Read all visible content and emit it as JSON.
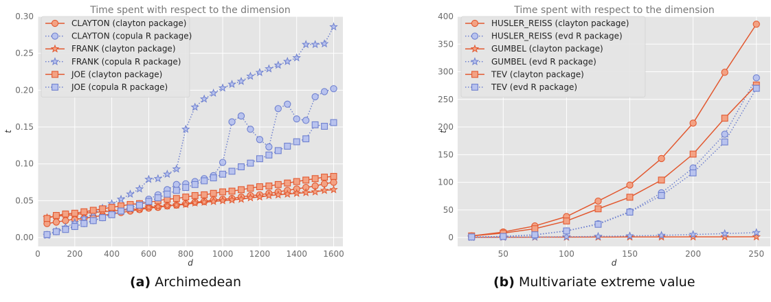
{
  "colors": {
    "solid": "#E2582F",
    "solid_fill": "#F3A284",
    "dotted": "#6E80CF",
    "dotted_fill": "#B9C3EE",
    "panel_bg": "#E5E5E5",
    "grid": "#FFFFFF"
  },
  "panels": [
    {
      "tag": "(a)",
      "caption": "Archimedean"
    },
    {
      "tag": "(b)",
      "caption": "Multivariate extreme value"
    }
  ],
  "chart_data": [
    {
      "type": "line",
      "title": "Time spent with respect to the dimension",
      "xlabel": "d",
      "ylabel": "t",
      "xlim": [
        0,
        1650
      ],
      "ylim": [
        -0.012,
        0.3
      ],
      "xticks": [
        0,
        200,
        400,
        600,
        800,
        1000,
        1200,
        1400,
        1600
      ],
      "yticks": [
        0.0,
        0.05,
        0.1,
        0.15,
        0.2,
        0.25,
        0.3
      ],
      "ytick_labels": [
        "0.00",
        "0.05",
        "0.10",
        "0.15",
        "0.20",
        "0.25",
        "0.30"
      ],
      "grid": true,
      "legend": "top-left",
      "x": [
        50,
        100,
        150,
        200,
        250,
        300,
        350,
        400,
        450,
        500,
        550,
        600,
        650,
        700,
        750,
        800,
        850,
        900,
        950,
        1000,
        1050,
        1100,
        1150,
        1200,
        1250,
        1300,
        1350,
        1400,
        1450,
        1500,
        1550,
        1600
      ],
      "series": [
        {
          "name": "CLAYTON (clayton package)",
          "marker": "circle",
          "style": "solid",
          "values": [
            0.019,
            0.021,
            0.023,
            0.025,
            0.026,
            0.028,
            0.03,
            0.032,
            0.034,
            0.036,
            0.038,
            0.04,
            0.041,
            0.043,
            0.044,
            0.046,
            0.048,
            0.049,
            0.051,
            0.052,
            0.053,
            0.055,
            0.057,
            0.058,
            0.06,
            0.062,
            0.064,
            0.066,
            0.068,
            0.07,
            0.073,
            0.075
          ]
        },
        {
          "name": "CLAYTON (copula R package)",
          "marker": "circle",
          "style": "dotted",
          "values": [
            0.004,
            0.008,
            0.012,
            0.015,
            0.019,
            0.023,
            0.027,
            0.032,
            0.036,
            0.041,
            0.046,
            0.052,
            0.058,
            0.065,
            0.072,
            0.073,
            0.076,
            0.08,
            0.084,
            0.102,
            0.157,
            0.165,
            0.147,
            0.133,
            0.123,
            0.175,
            0.181,
            0.161,
            0.159,
            0.191,
            0.198,
            0.202
          ]
        },
        {
          "name": "FRANK (clayton package)",
          "marker": "star",
          "style": "solid",
          "values": [
            0.027,
            0.029,
            0.03,
            0.031,
            0.033,
            0.034,
            0.035,
            0.036,
            0.037,
            0.038,
            0.039,
            0.041,
            0.042,
            0.043,
            0.044,
            0.045,
            0.047,
            0.048,
            0.049,
            0.05,
            0.051,
            0.052,
            0.054,
            0.055,
            0.057,
            0.058,
            0.059,
            0.06,
            0.061,
            0.062,
            0.064,
            0.065
          ]
        },
        {
          "name": "FRANK (copula R package)",
          "marker": "star",
          "style": "dotted",
          "values": [
            0.003,
            0.009,
            0.014,
            0.02,
            0.026,
            0.033,
            0.04,
            0.046,
            0.052,
            0.059,
            0.066,
            0.079,
            0.08,
            0.086,
            0.093,
            0.147,
            0.177,
            0.188,
            0.196,
            0.203,
            0.208,
            0.212,
            0.219,
            0.224,
            0.229,
            0.234,
            0.239,
            0.244,
            0.262,
            0.262,
            0.263,
            0.286
          ]
        },
        {
          "name": "JOE (clayton package)",
          "marker": "square",
          "style": "solid",
          "values": [
            0.026,
            0.03,
            0.032,
            0.033,
            0.035,
            0.037,
            0.039,
            0.041,
            0.043,
            0.045,
            0.046,
            0.048,
            0.05,
            0.052,
            0.053,
            0.055,
            0.057,
            0.058,
            0.06,
            0.062,
            0.063,
            0.065,
            0.067,
            0.069,
            0.07,
            0.072,
            0.074,
            0.076,
            0.078,
            0.08,
            0.082,
            0.083
          ]
        },
        {
          "name": "JOE (copula R package)",
          "marker": "square",
          "style": "dotted",
          "values": [
            0.004,
            0.008,
            0.011,
            0.015,
            0.019,
            0.023,
            0.027,
            0.031,
            0.036,
            0.04,
            0.044,
            0.049,
            0.054,
            0.059,
            0.064,
            0.068,
            0.072,
            0.077,
            0.081,
            0.086,
            0.09,
            0.096,
            0.101,
            0.107,
            0.112,
            0.118,
            0.124,
            0.13,
            0.134,
            0.153,
            0.151,
            0.156
          ]
        }
      ]
    },
    {
      "type": "line",
      "title": "Time spent with respect to the dimension",
      "xlabel": "d",
      "ylabel": "t",
      "xlim": [
        14,
        261
      ],
      "ylim": [
        -16,
        400
      ],
      "xticks": [
        50,
        100,
        150,
        200,
        250
      ],
      "yticks": [
        0,
        50,
        100,
        150,
        200,
        250,
        300,
        350,
        400
      ],
      "ytick_labels": [
        "0",
        "50",
        "100",
        "150",
        "200",
        "250",
        "300",
        "350",
        "400"
      ],
      "grid": true,
      "legend": "top-left",
      "x": [
        25,
        50,
        75,
        100,
        125,
        150,
        175,
        200,
        225,
        250
      ],
      "series": [
        {
          "name": "HUSLER_REISS (clayton package)",
          "marker": "circle",
          "style": "solid",
          "values": [
            3,
            10,
            21,
            38,
            66,
            95,
            143,
            207,
            299,
            386
          ]
        },
        {
          "name": "HUSLER_REISS (evd R package)",
          "marker": "circle",
          "style": "dotted",
          "values": [
            1,
            2,
            5,
            12,
            25,
            47,
            81,
            126,
            187,
            289
          ]
        },
        {
          "name": "GUMBEL (clayton package)",
          "marker": "star",
          "style": "solid",
          "values": [
            0.5,
            0.6,
            0.7,
            0.8,
            0.9,
            1.0,
            1.1,
            1.2,
            1.3,
            1.4
          ]
        },
        {
          "name": "GUMBEL (evd R package)",
          "marker": "star",
          "style": "dotted",
          "values": [
            0.5,
            0.7,
            1.0,
            1.5,
            2.1,
            3.0,
            4.0,
            5.5,
            7.2,
            9.0
          ]
        },
        {
          "name": "TEV (clayton package)",
          "marker": "square",
          "style": "solid",
          "values": [
            3,
            8,
            16,
            30,
            52,
            73,
            104,
            151,
            216,
            276
          ]
        },
        {
          "name": "TEV (evd R package)",
          "marker": "square",
          "style": "dotted",
          "values": [
            1,
            2,
            5,
            12,
            24,
            46,
            76,
            117,
            173,
            270
          ]
        }
      ]
    }
  ]
}
